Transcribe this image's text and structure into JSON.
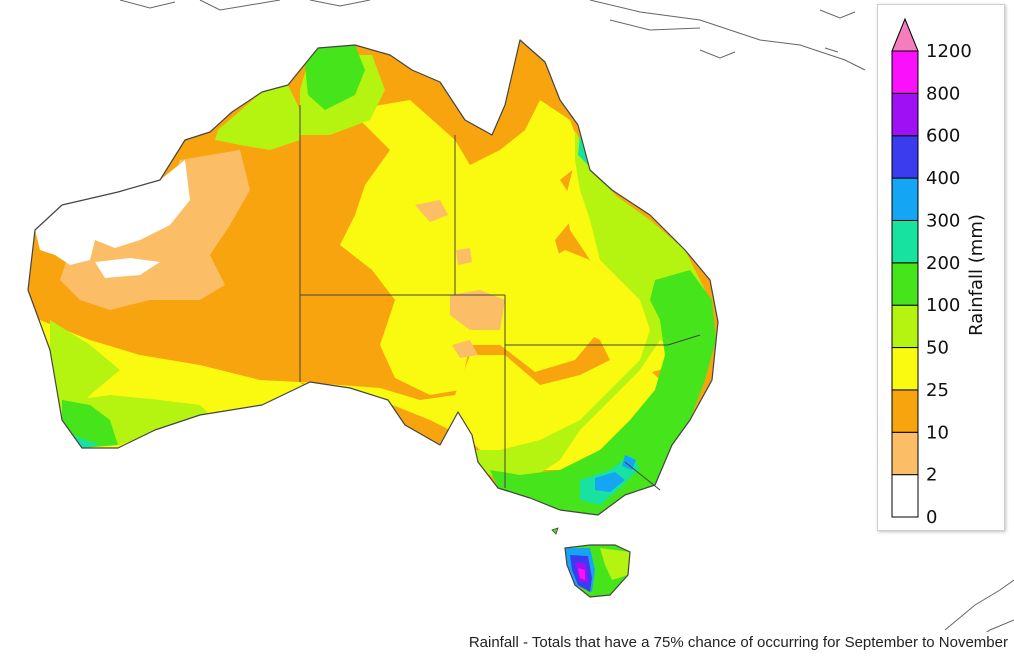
{
  "caption": "Rainfall - Totals that have a 75% chance of occurring for September to November",
  "legend": {
    "title": "Rainfall (mm)",
    "ticks": [
      "0",
      "2",
      "10",
      "25",
      "50",
      "100",
      "200",
      "300",
      "400",
      "600",
      "800",
      "1200"
    ],
    "colors": [
      "#ffffff",
      "#fbbd66",
      "#f7a40e",
      "#fafa10",
      "#b4f410",
      "#46e41a",
      "#18e2a0",
      "#15a5f5",
      "#3c3cef",
      "#9f10f4",
      "#fa10fa",
      "#f57cbd"
    ]
  },
  "map_colors": {
    "ocean": "#ffffff",
    "coast": "#444444",
    "border": "#444444"
  }
}
